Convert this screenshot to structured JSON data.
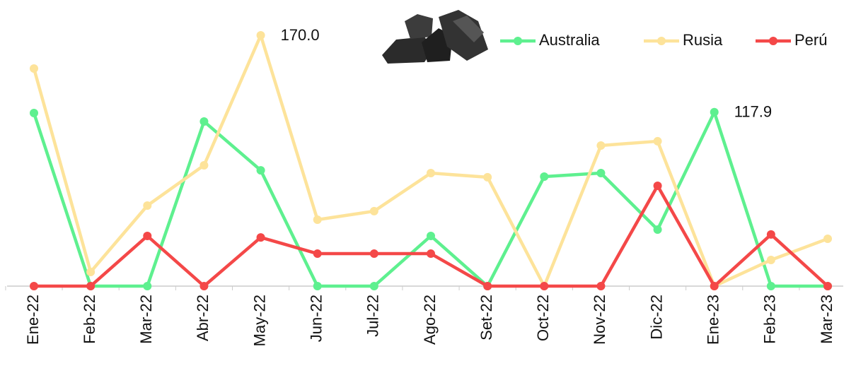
{
  "chart_data": {
    "type": "line",
    "categories": [
      "Ene-22",
      "Feb-22",
      "Mar-22",
      "Abr-22",
      "May-22",
      "Jun-22",
      "Jul-22",
      "Ago-22",
      "Set-22",
      "Oct-22",
      "Nov-22",
      "Dic-22",
      "Ene-23",
      "Feb-23",
      "Mar-23"
    ],
    "ylim": [
      0,
      170
    ],
    "series": [
      {
        "name": "Australia",
        "color": "#5ef08f",
        "values": [
          117.3,
          0,
          0,
          111.6,
          78.5,
          0,
          0,
          34,
          0,
          74.2,
          76.6,
          38.3,
          117.9,
          0,
          0
        ],
        "value_labels": [
          null,
          null,
          null,
          null,
          null,
          null,
          null,
          null,
          null,
          null,
          null,
          null,
          "117.9",
          null,
          null
        ]
      },
      {
        "name": "Rusia",
        "color": "#fde39a",
        "values": [
          147.5,
          9.6,
          54.6,
          81.9,
          170,
          45,
          50.8,
          76.6,
          73.8,
          0,
          95.3,
          98.2,
          0,
          17.7,
          32.1
        ],
        "value_labels": [
          null,
          null,
          null,
          null,
          "170.0",
          null,
          null,
          null,
          null,
          null,
          null,
          null,
          null,
          null,
          null
        ]
      },
      {
        "name": "Perú",
        "color": "#f44848",
        "values": [
          0,
          0,
          34,
          0,
          33,
          22,
          22,
          22,
          0,
          0,
          0,
          68,
          0,
          35,
          0
        ]
      }
    ]
  }
}
